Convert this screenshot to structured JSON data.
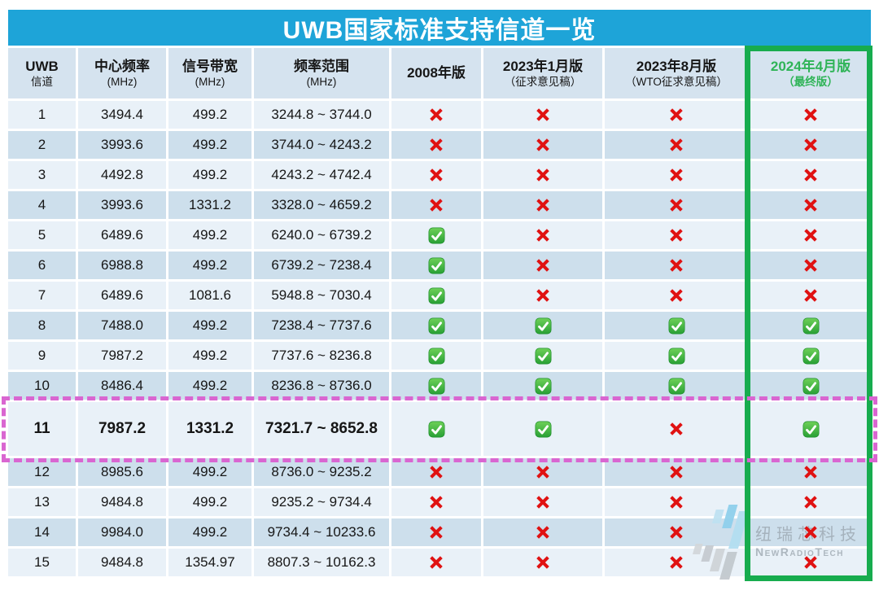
{
  "title": "UWB国家标准支持信道一览",
  "table": {
    "columns": [
      {
        "key": "channel",
        "line1": "UWB",
        "line2": "信道",
        "highlight": false
      },
      {
        "key": "center_frequency",
        "line1": "中心频率",
        "line2": "(MHz)",
        "highlight": false
      },
      {
        "key": "bandwidth",
        "line1": "信号带宽",
        "line2": "(MHz)",
        "highlight": false
      },
      {
        "key": "frequency_range",
        "line1": "频率范围",
        "line2": "(MHz)",
        "highlight": false
      },
      {
        "key": "v2008",
        "line1": "2008年版",
        "line2": "",
        "highlight": false
      },
      {
        "key": "v2023_jan",
        "line1": "2023年1月版",
        "line2": "（征求意见稿）",
        "highlight": false
      },
      {
        "key": "v2023_aug",
        "line1": "2023年8月版",
        "line2": "（WTO征求意见稿）",
        "highlight": false
      },
      {
        "key": "v2024_apr",
        "line1": "2024年4月版",
        "line2": "（最终版）",
        "highlight": true
      }
    ],
    "rows": [
      {
        "channel": "1",
        "center": "3494.4",
        "bandwidth": "499.2",
        "range": "3244.8 ~ 3744.0",
        "marks": [
          false,
          false,
          false,
          false
        ],
        "emphasized": false
      },
      {
        "channel": "2",
        "center": "3993.6",
        "bandwidth": "499.2",
        "range": "3744.0 ~ 4243.2",
        "marks": [
          false,
          false,
          false,
          false
        ],
        "emphasized": false
      },
      {
        "channel": "3",
        "center": "4492.8",
        "bandwidth": "499.2",
        "range": "4243.2 ~ 4742.4",
        "marks": [
          false,
          false,
          false,
          false
        ],
        "emphasized": false
      },
      {
        "channel": "4",
        "center": "3993.6",
        "bandwidth": "1331.2",
        "range": "3328.0 ~ 4659.2",
        "marks": [
          false,
          false,
          false,
          false
        ],
        "emphasized": false
      },
      {
        "channel": "5",
        "center": "6489.6",
        "bandwidth": "499.2",
        "range": "6240.0 ~ 6739.2",
        "marks": [
          true,
          false,
          false,
          false
        ],
        "emphasized": false
      },
      {
        "channel": "6",
        "center": "6988.8",
        "bandwidth": "499.2",
        "range": "6739.2 ~ 7238.4",
        "marks": [
          true,
          false,
          false,
          false
        ],
        "emphasized": false
      },
      {
        "channel": "7",
        "center": "6489.6",
        "bandwidth": "1081.6",
        "range": "5948.8 ~ 7030.4",
        "marks": [
          true,
          false,
          false,
          false
        ],
        "emphasized": false
      },
      {
        "channel": "8",
        "center": "7488.0",
        "bandwidth": "499.2",
        "range": "7238.4 ~ 7737.6",
        "marks": [
          true,
          true,
          true,
          true
        ],
        "emphasized": false
      },
      {
        "channel": "9",
        "center": "7987.2",
        "bandwidth": "499.2",
        "range": "7737.6 ~ 8236.8",
        "marks": [
          true,
          true,
          true,
          true
        ],
        "emphasized": false
      },
      {
        "channel": "10",
        "center": "8486.4",
        "bandwidth": "499.2",
        "range": "8236.8 ~ 8736.0",
        "marks": [
          true,
          true,
          true,
          true
        ],
        "emphasized": false
      },
      {
        "channel": "11",
        "center": "7987.2",
        "bandwidth": "1331.2",
        "range": "7321.7 ~ 8652.8",
        "marks": [
          true,
          true,
          false,
          true
        ],
        "emphasized": true
      },
      {
        "channel": "12",
        "center": "8985.6",
        "bandwidth": "499.2",
        "range": "8736.0 ~ 9235.2",
        "marks": [
          false,
          false,
          false,
          false
        ],
        "emphasized": false
      },
      {
        "channel": "13",
        "center": "9484.8",
        "bandwidth": "499.2",
        "range": "9235.2 ~ 9734.4",
        "marks": [
          false,
          false,
          false,
          false
        ],
        "emphasized": false
      },
      {
        "channel": "14",
        "center": "9984.0",
        "bandwidth": "499.2",
        "range": "9734.4 ~ 10233.6",
        "marks": [
          false,
          false,
          false,
          false
        ],
        "emphasized": false
      },
      {
        "channel": "15",
        "center": "9484.8",
        "bandwidth": "1354.97",
        "range": "8807.3 ~ 10162.3",
        "marks": [
          false,
          false,
          false,
          false
        ],
        "emphasized": false
      }
    ]
  },
  "watermark": {
    "cn": "纽瑞芯科技",
    "en": "NewRadioTech"
  },
  "colors": {
    "title_bar_blue": "#1ea4d8",
    "header_row_bg": "#d5e3ef",
    "row_light_bg": "#e9f1f8",
    "row_dark_bg": "#cddfec",
    "cross_red": "#e01212",
    "check_green": "#33a83c",
    "final_column_border_green": "#17ac4e",
    "final_column_text_green": "#2fb457",
    "channel11_border_pink": "#d966d1"
  }
}
